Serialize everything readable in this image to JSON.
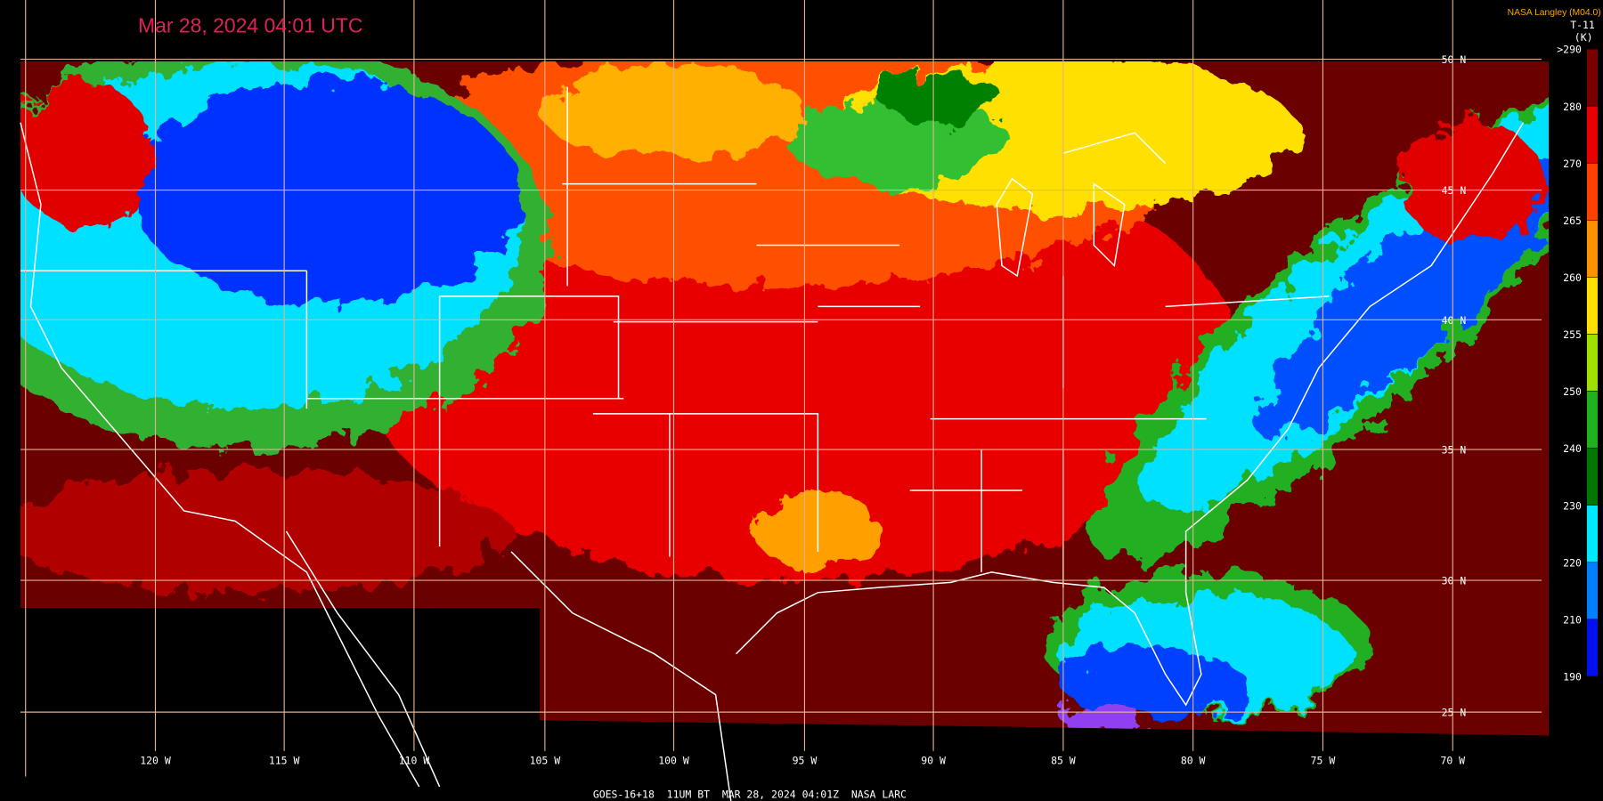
{
  "title": "Mar 28, 2024 04:01 UTC",
  "source": "NASA Langley (M04.0)",
  "colorbar": {
    "title": "T-11",
    "unit": "(K)",
    "labels": [
      ">290",
      "280",
      "270",
      "265",
      "260",
      "255",
      "250",
      "240",
      "230",
      "220",
      "210",
      "190"
    ],
    "colors": [
      "#7a0000",
      "#e80000",
      "#ff4000",
      "#ff9000",
      "#ffe000",
      "#a0e000",
      "#20b020",
      "#007800",
      "#00e8ff",
      "#0080ff",
      "#0010f0",
      "#9040f0"
    ]
  },
  "lat_labels": [
    "50 N",
    "45 N",
    "40 N",
    "35 N",
    "30 N",
    "25 N"
  ],
  "lon_labels": [
    "120 W",
    "115 W",
    "110 W",
    "105 W",
    "100 W",
    "95 W",
    "90 W",
    "85 W",
    "80 W",
    "75 W",
    "70 W"
  ],
  "footer": "GOES-16+18  11UM BT  MAR 28, 2024 04:01Z  NASA LARC"
}
